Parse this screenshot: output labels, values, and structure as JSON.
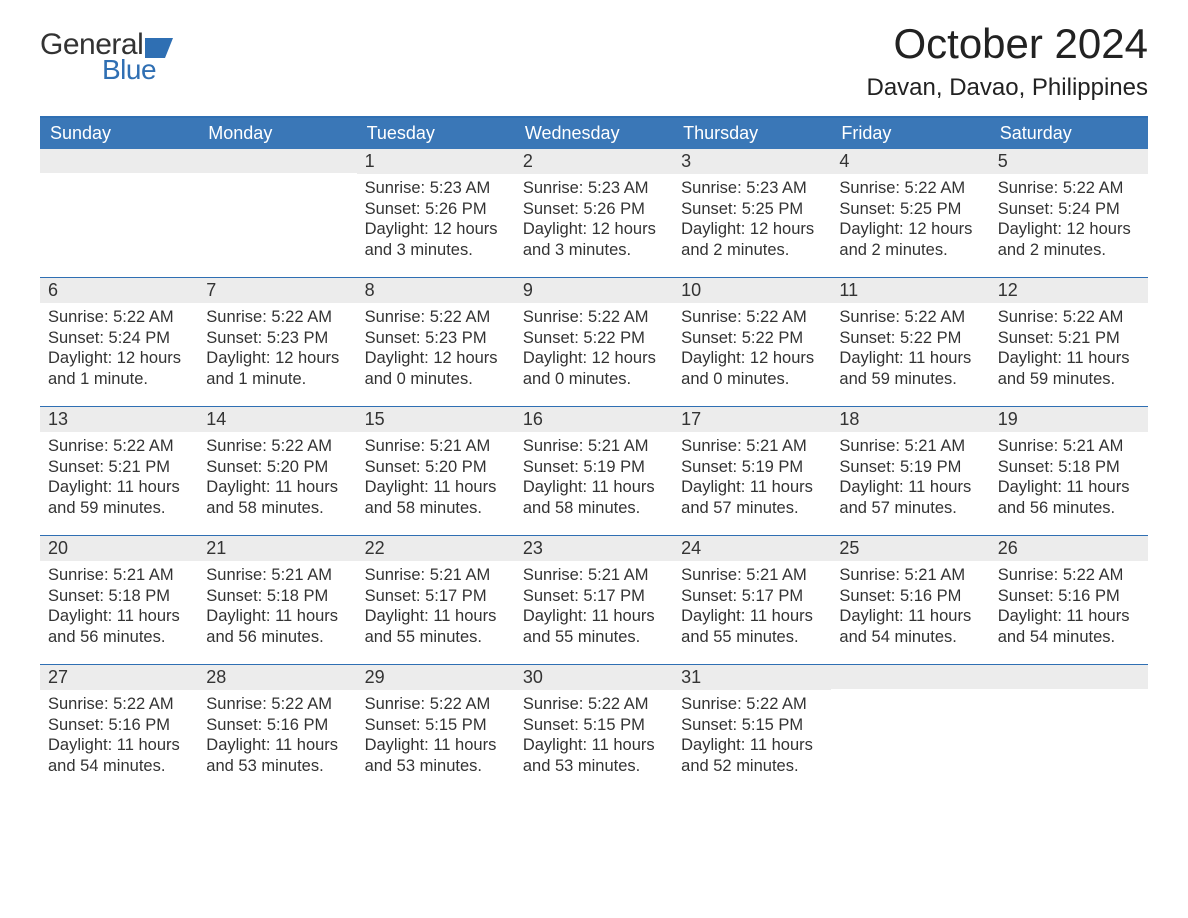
{
  "logo": {
    "general": "General",
    "blue": "Blue",
    "flag_color": "#2f6fb3"
  },
  "title": "October 2024",
  "location": "Davan, Davao, Philippines",
  "colors": {
    "header_bg": "#3a77b7",
    "header_text": "#ffffff",
    "rule": "#2f6fb3",
    "daynum_bg": "#ececec",
    "text": "#333333",
    "page_bg": "#ffffff"
  },
  "day_headers": [
    "Sunday",
    "Monday",
    "Tuesday",
    "Wednesday",
    "Thursday",
    "Friday",
    "Saturday"
  ],
  "weeks": [
    [
      null,
      null,
      {
        "n": "1",
        "sunrise": "5:23 AM",
        "sunset": "5:26 PM",
        "daylight": "12 hours and 3 minutes."
      },
      {
        "n": "2",
        "sunrise": "5:23 AM",
        "sunset": "5:26 PM",
        "daylight": "12 hours and 3 minutes."
      },
      {
        "n": "3",
        "sunrise": "5:23 AM",
        "sunset": "5:25 PM",
        "daylight": "12 hours and 2 minutes."
      },
      {
        "n": "4",
        "sunrise": "5:22 AM",
        "sunset": "5:25 PM",
        "daylight": "12 hours and 2 minutes."
      },
      {
        "n": "5",
        "sunrise": "5:22 AM",
        "sunset": "5:24 PM",
        "daylight": "12 hours and 2 minutes."
      }
    ],
    [
      {
        "n": "6",
        "sunrise": "5:22 AM",
        "sunset": "5:24 PM",
        "daylight": "12 hours and 1 minute."
      },
      {
        "n": "7",
        "sunrise": "5:22 AM",
        "sunset": "5:23 PM",
        "daylight": "12 hours and 1 minute."
      },
      {
        "n": "8",
        "sunrise": "5:22 AM",
        "sunset": "5:23 PM",
        "daylight": "12 hours and 0 minutes."
      },
      {
        "n": "9",
        "sunrise": "5:22 AM",
        "sunset": "5:22 PM",
        "daylight": "12 hours and 0 minutes."
      },
      {
        "n": "10",
        "sunrise": "5:22 AM",
        "sunset": "5:22 PM",
        "daylight": "12 hours and 0 minutes."
      },
      {
        "n": "11",
        "sunrise": "5:22 AM",
        "sunset": "5:22 PM",
        "daylight": "11 hours and 59 minutes."
      },
      {
        "n": "12",
        "sunrise": "5:22 AM",
        "sunset": "5:21 PM",
        "daylight": "11 hours and 59 minutes."
      }
    ],
    [
      {
        "n": "13",
        "sunrise": "5:22 AM",
        "sunset": "5:21 PM",
        "daylight": "11 hours and 59 minutes."
      },
      {
        "n": "14",
        "sunrise": "5:22 AM",
        "sunset": "5:20 PM",
        "daylight": "11 hours and 58 minutes."
      },
      {
        "n": "15",
        "sunrise": "5:21 AM",
        "sunset": "5:20 PM",
        "daylight": "11 hours and 58 minutes."
      },
      {
        "n": "16",
        "sunrise": "5:21 AM",
        "sunset": "5:19 PM",
        "daylight": "11 hours and 58 minutes."
      },
      {
        "n": "17",
        "sunrise": "5:21 AM",
        "sunset": "5:19 PM",
        "daylight": "11 hours and 57 minutes."
      },
      {
        "n": "18",
        "sunrise": "5:21 AM",
        "sunset": "5:19 PM",
        "daylight": "11 hours and 57 minutes."
      },
      {
        "n": "19",
        "sunrise": "5:21 AM",
        "sunset": "5:18 PM",
        "daylight": "11 hours and 56 minutes."
      }
    ],
    [
      {
        "n": "20",
        "sunrise": "5:21 AM",
        "sunset": "5:18 PM",
        "daylight": "11 hours and 56 minutes."
      },
      {
        "n": "21",
        "sunrise": "5:21 AM",
        "sunset": "5:18 PM",
        "daylight": "11 hours and 56 minutes."
      },
      {
        "n": "22",
        "sunrise": "5:21 AM",
        "sunset": "5:17 PM",
        "daylight": "11 hours and 55 minutes."
      },
      {
        "n": "23",
        "sunrise": "5:21 AM",
        "sunset": "5:17 PM",
        "daylight": "11 hours and 55 minutes."
      },
      {
        "n": "24",
        "sunrise": "5:21 AM",
        "sunset": "5:17 PM",
        "daylight": "11 hours and 55 minutes."
      },
      {
        "n": "25",
        "sunrise": "5:21 AM",
        "sunset": "5:16 PM",
        "daylight": "11 hours and 54 minutes."
      },
      {
        "n": "26",
        "sunrise": "5:22 AM",
        "sunset": "5:16 PM",
        "daylight": "11 hours and 54 minutes."
      }
    ],
    [
      {
        "n": "27",
        "sunrise": "5:22 AM",
        "sunset": "5:16 PM",
        "daylight": "11 hours and 54 minutes."
      },
      {
        "n": "28",
        "sunrise": "5:22 AM",
        "sunset": "5:16 PM",
        "daylight": "11 hours and 53 minutes."
      },
      {
        "n": "29",
        "sunrise": "5:22 AM",
        "sunset": "5:15 PM",
        "daylight": "11 hours and 53 minutes."
      },
      {
        "n": "30",
        "sunrise": "5:22 AM",
        "sunset": "5:15 PM",
        "daylight": "11 hours and 53 minutes."
      },
      {
        "n": "31",
        "sunrise": "5:22 AM",
        "sunset": "5:15 PM",
        "daylight": "11 hours and 52 minutes."
      },
      null,
      null
    ]
  ],
  "labels": {
    "sunrise": "Sunrise: ",
    "sunset": "Sunset: ",
    "daylight": "Daylight: "
  }
}
